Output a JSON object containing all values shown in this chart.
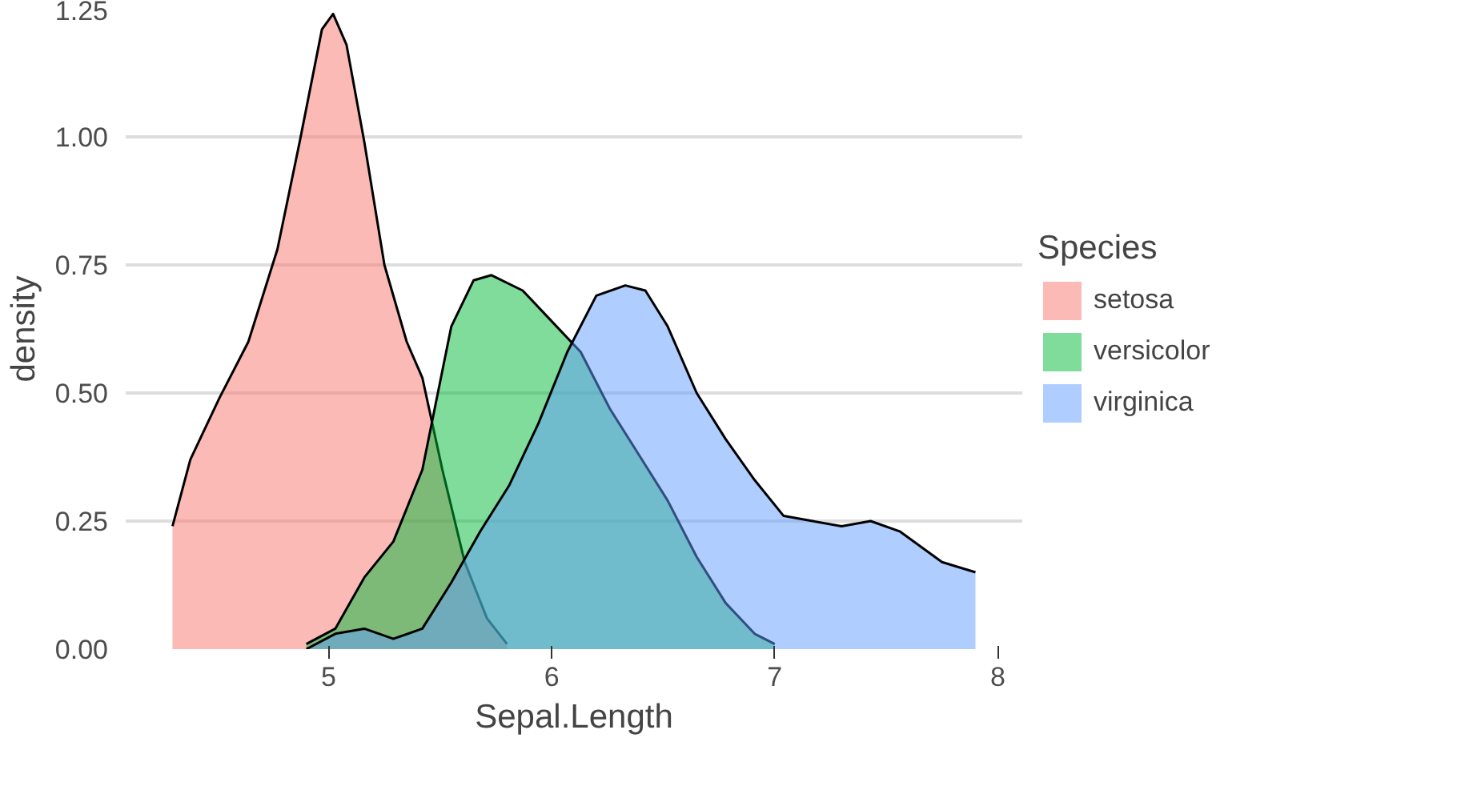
{
  "chart_data": {
    "type": "area",
    "xlabel": "Sepal.Length",
    "ylabel": "density",
    "legend_title": "Species",
    "legend": "right",
    "grid": "y",
    "xlim": [
      4.09,
      8.11
    ],
    "ylim": [
      0,
      1.25
    ],
    "xticks": [
      5,
      6,
      7,
      8
    ],
    "yticks": [
      {
        "value": 0,
        "label": "0.00"
      },
      {
        "value": 0.25,
        "label": "0.25"
      },
      {
        "value": 0.5,
        "label": "0.50"
      },
      {
        "value": 0.75,
        "label": "0.75"
      },
      {
        "value": 1,
        "label": "1.00"
      },
      {
        "value": 1.25,
        "label": "1.25"
      }
    ],
    "series": [
      {
        "name": "setosa",
        "color": "#f8766d",
        "x": [
          4.3,
          4.38,
          4.51,
          4.64,
          4.77,
          4.87,
          4.97,
          5.02,
          5.08,
          5.16,
          5.25,
          5.35,
          5.42,
          5.51,
          5.61,
          5.71,
          5.8
        ],
        "values": [
          0.24,
          0.37,
          0.49,
          0.6,
          0.78,
          0.99,
          1.21,
          1.24,
          1.18,
          0.99,
          0.75,
          0.6,
          0.53,
          0.35,
          0.17,
          0.06,
          0.01
        ]
      },
      {
        "name": "versicolor",
        "color": "#00ba38",
        "x": [
          4.9,
          5.03,
          5.16,
          5.29,
          5.42,
          5.55,
          5.65,
          5.73,
          5.87,
          6.0,
          6.13,
          6.26,
          6.39,
          6.52,
          6.65,
          6.78,
          6.91,
          7.0
        ],
        "values": [
          0.01,
          0.04,
          0.14,
          0.21,
          0.35,
          0.63,
          0.72,
          0.73,
          0.7,
          0.64,
          0.58,
          0.47,
          0.38,
          0.29,
          0.18,
          0.09,
          0.03,
          0.01
        ]
      },
      {
        "name": "virginica",
        "color": "#619cff",
        "x": [
          4.9,
          5.03,
          5.16,
          5.29,
          5.42,
          5.55,
          5.68,
          5.81,
          5.94,
          6.07,
          6.2,
          6.33,
          6.42,
          6.52,
          6.65,
          6.78,
          6.91,
          7.04,
          7.17,
          7.3,
          7.43,
          7.56,
          7.75,
          7.9
        ],
        "values": [
          0.0,
          0.03,
          0.04,
          0.02,
          0.04,
          0.13,
          0.23,
          0.32,
          0.44,
          0.58,
          0.69,
          0.71,
          0.7,
          0.63,
          0.5,
          0.41,
          0.33,
          0.26,
          0.25,
          0.24,
          0.25,
          0.23,
          0.17,
          0.15
        ]
      }
    ]
  }
}
